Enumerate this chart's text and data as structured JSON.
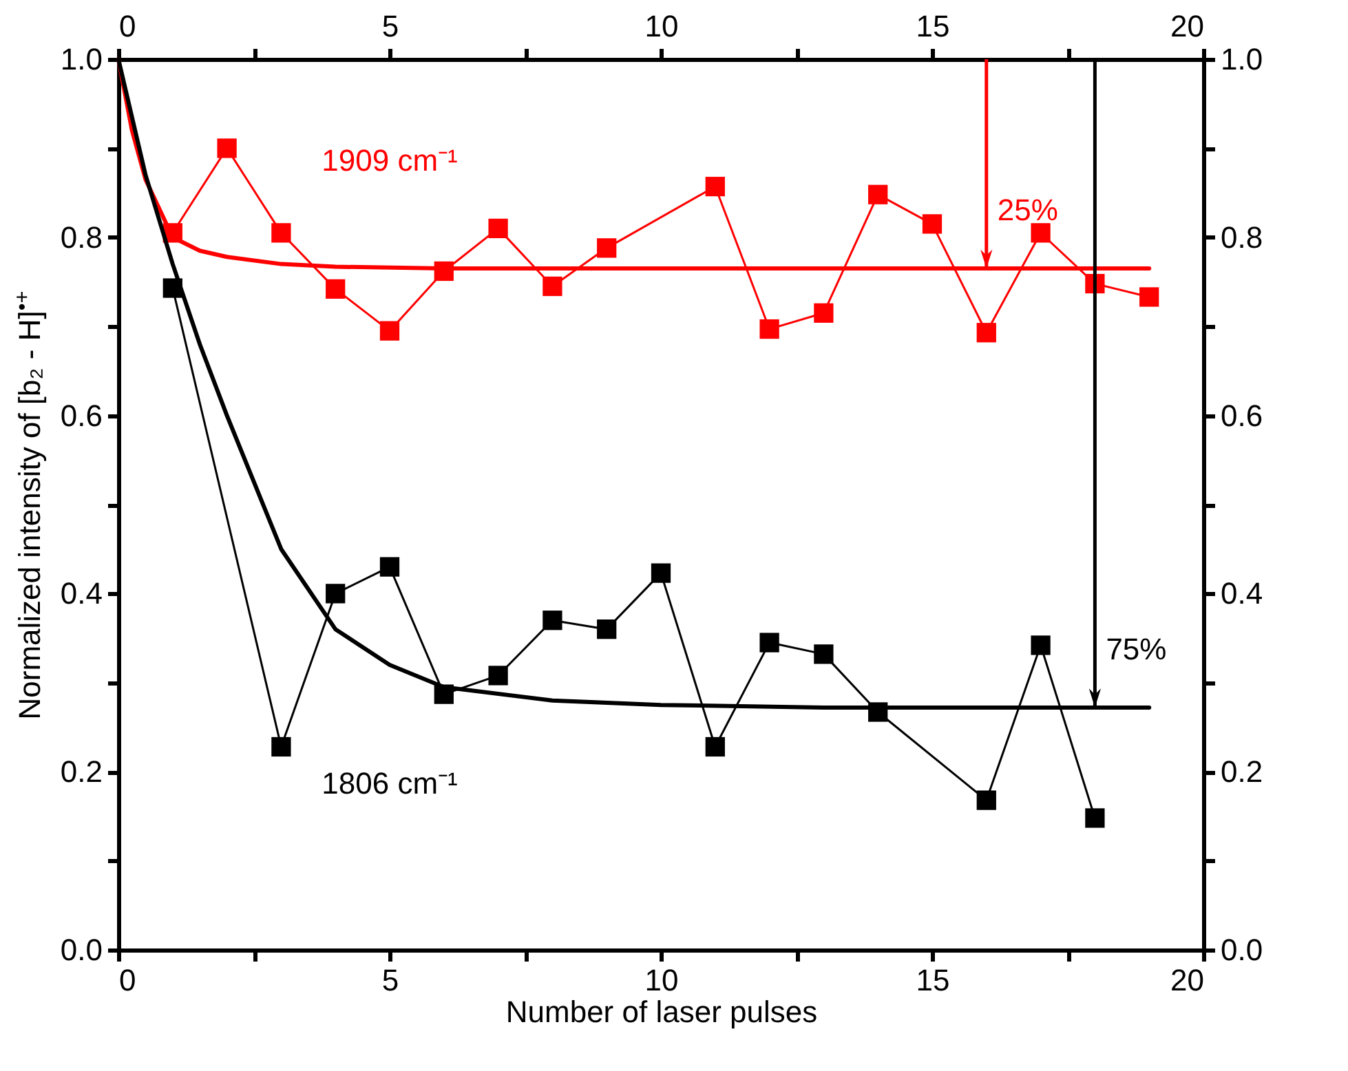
{
  "chart_data": {
    "type": "line",
    "xlabel": "Number of laser pulses",
    "ylabel": "Normalized intensity of [b₂ - H]$^{•+}$",
    "xlim": [
      0,
      20
    ],
    "xticks": [
      0,
      {
        "value": 2.5,
        "label": null
      },
      5,
      {
        "value": 7.5,
        "label": null
      },
      10,
      {
        "value": 12.5,
        "label": null
      },
      15,
      {
        "value": 17.5,
        "label": null
      },
      20
    ],
    "x2lim": [
      0,
      20
    ],
    "x2ticks": [
      0,
      {
        "value": 2.5,
        "label": null
      },
      5,
      {
        "value": 7.5,
        "label": null
      },
      10,
      {
        "value": 12.5,
        "label": null
      },
      15,
      {
        "value": 17.5,
        "label": null
      },
      20
    ],
    "ylim": [
      0,
      1
    ],
    "yticks": [
      {
        "value": 0,
        "label": "0.0"
      },
      {
        "value": 0.1,
        "label": null
      },
      0.2,
      {
        "value": 0.3,
        "label": null
      },
      0.4,
      {
        "value": 0.5,
        "label": null
      },
      0.6,
      {
        "value": 0.7,
        "label": null
      },
      0.8,
      {
        "value": 0.9,
        "label": null
      },
      {
        "value": 1,
        "label": "1.0"
      }
    ],
    "y2lim": [
      0,
      1
    ],
    "y2ticks": [
      {
        "value": 0,
        "label": "0.0"
      },
      {
        "value": 0.1,
        "label": null
      },
      0.2,
      {
        "value": 0.3,
        "label": null
      },
      0.4,
      {
        "value": 0.5,
        "label": null
      },
      0.6,
      {
        "value": 0.7,
        "label": null
      },
      0.8,
      {
        "value": 0.9,
        "label": null
      },
      {
        "value": 1,
        "label": "1.0"
      }
    ],
    "grid": false,
    "series": [
      {
        "name": "1909 cm⁻¹",
        "color": "#ff0000",
        "marker": "square",
        "x": [
          1,
          2,
          3,
          4,
          5,
          6,
          7,
          8,
          9,
          11,
          12,
          13,
          14,
          15,
          16,
          17,
          18,
          19
        ],
        "values": [
          0.805,
          0.9,
          0.805,
          0.742,
          0.695,
          0.762,
          0.81,
          0.745,
          0.788,
          0.857,
          0.697,
          0.715,
          0.848,
          0.815,
          0.693,
          0.805,
          0.748,
          0.733
        ]
      },
      {
        "name": "1806 cm⁻¹",
        "color": "#000000",
        "marker": "square",
        "x": [
          1,
          3,
          4,
          5,
          6,
          7,
          8,
          9,
          10,
          11,
          12,
          13,
          14,
          16,
          17,
          18
        ],
        "values": [
          0.743,
          0.228,
          0.4,
          0.43,
          0.287,
          0.308,
          0.37,
          0.36,
          0.423,
          0.228,
          0.345,
          0.332,
          0.267,
          0.168,
          0.342,
          0.148
        ]
      },
      {
        "color": "#ff0000",
        "marker": "none",
        "x": [
          0,
          0.25,
          0.5,
          1,
          1.5,
          2,
          3,
          4,
          6,
          10,
          19
        ],
        "values": [
          1.0,
          0.92,
          0.865,
          0.8,
          0.785,
          0.778,
          0.77,
          0.767,
          0.765,
          0.765,
          0.765
        ]
      },
      {
        "color": "#000000",
        "marker": "none",
        "x": [
          0,
          0.5,
          1,
          1.5,
          2,
          3,
          4,
          5,
          6,
          8,
          10,
          13,
          16,
          19
        ],
        "values": [
          1.0,
          0.87,
          0.77,
          0.68,
          0.6,
          0.45,
          0.36,
          0.32,
          0.295,
          0.28,
          0.275,
          0.272,
          0.272,
          0.272
        ]
      }
    ],
    "annotations": [
      {
        "text": "25%",
        "x": 16,
        "y": 0.765
      },
      {
        "text": "75%",
        "x": 18,
        "y": 0.272
      }
    ]
  }
}
